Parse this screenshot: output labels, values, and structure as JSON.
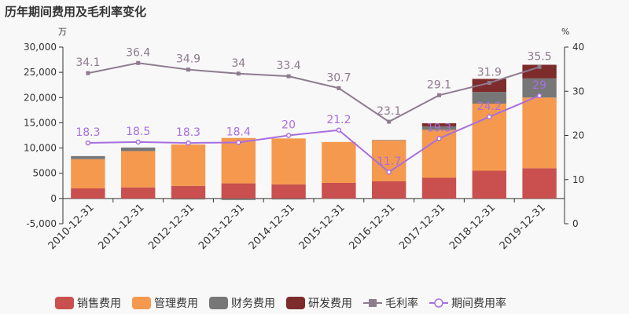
{
  "chart_data": {
    "type": "bar",
    "title": "历年期间费用及毛利率变化",
    "left_unit": "万",
    "right_unit": "%",
    "categories": [
      "2010-12-31",
      "2011-12-31",
      "2012-12-31",
      "2013-12-31",
      "2014-12-31",
      "2015-12-31",
      "2016-12-31",
      "2017-12-31",
      "2018-12-31",
      "2019-12-31"
    ],
    "ylim_left": [
      -5000,
      30000
    ],
    "yticks_left": [
      -5000,
      0,
      5000,
      10000,
      15000,
      20000,
      25000,
      30000
    ],
    "ytick_labels_left": [
      "-5,000",
      "0",
      "5000",
      "10,000",
      "15,000",
      "20,000",
      "25,000",
      "30,000"
    ],
    "ylim_right": [
      0,
      40
    ],
    "yticks_right": [
      0,
      10,
      20,
      30,
      40
    ],
    "ytick_labels_right": [
      "0",
      "10",
      "20",
      "30",
      "40"
    ],
    "bar_series": [
      {
        "name": "销售费用",
        "color": "#c9504e",
        "values": [
          2000,
          2200,
          2500,
          3000,
          2800,
          3100,
          3400,
          4100,
          5500,
          6000
        ]
      },
      {
        "name": "管理费用",
        "color": "#f5994e",
        "values": [
          5800,
          7200,
          8200,
          9000,
          9100,
          8100,
          8100,
          9500,
          13300,
          14000
        ]
      },
      {
        "name": "财务费用",
        "color": "#777777",
        "values": [
          600,
          700,
          -200,
          -300,
          -200,
          -100,
          100,
          700,
          2300,
          3800
        ]
      },
      {
        "name": "研发费用",
        "color": "#7d2b2b",
        "values": [
          0,
          0,
          0,
          0,
          0,
          0,
          0,
          600,
          2600,
          2700
        ]
      }
    ],
    "line_series": [
      {
        "name": "毛利率",
        "color": "#8e7b8e",
        "marker": "square",
        "values": [
          34.1,
          36.4,
          34.9,
          34,
          33.4,
          30.7,
          23.1,
          29.1,
          31.9,
          35.5
        ],
        "labels": [
          "34.1",
          "36.4",
          "34.9",
          "34",
          "33.4",
          "30.7",
          "23.1",
          "29.1",
          "31.9",
          "35.5"
        ]
      },
      {
        "name": "期间费用率",
        "color": "#a86ee0",
        "marker": "circle",
        "values": [
          18.3,
          18.5,
          18.3,
          18.4,
          20,
          21.2,
          11.7,
          19.3,
          24.2,
          29
        ],
        "labels": [
          "18.3",
          "18.5",
          "18.3",
          "18.4",
          "20",
          "21.2",
          "11.7",
          "19.3",
          "24.2",
          "29"
        ]
      }
    ],
    "grid": false,
    "legend": "bottom"
  }
}
